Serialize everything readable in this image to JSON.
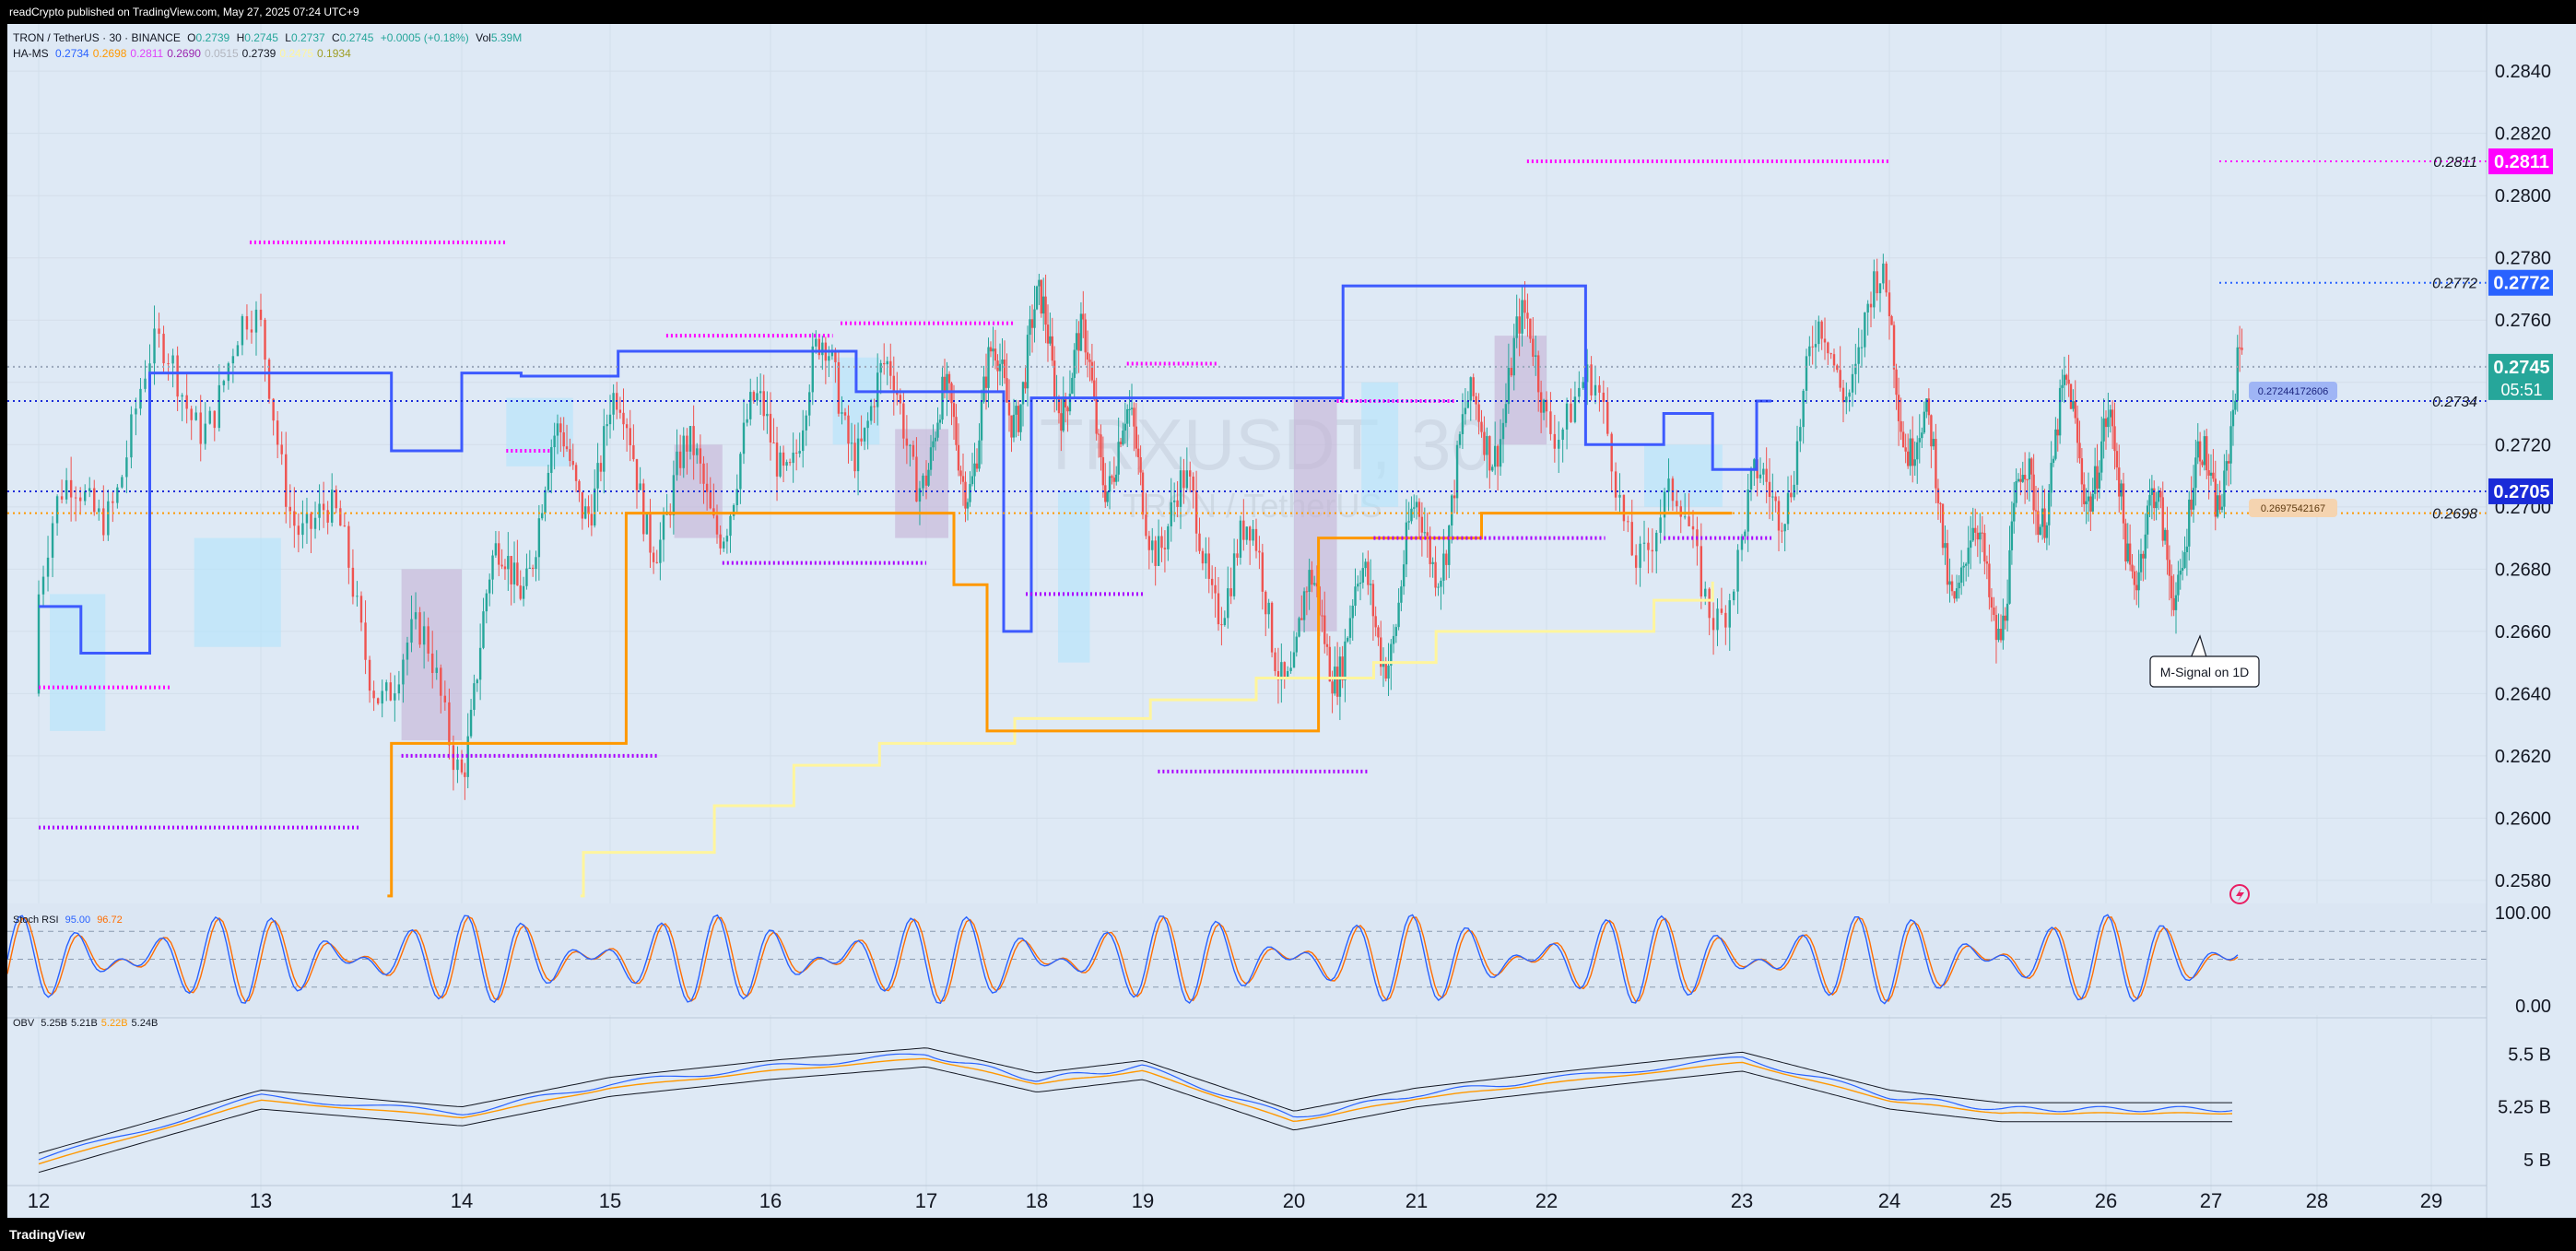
{
  "header": {
    "published": "readCrypto published on TradingView.com, May 27, 2025 07:24 UTC+9"
  },
  "symbol_line": {
    "name": "TRON / TetherUS · 30 · BINANCE",
    "o_label": "O",
    "o": "0.2739",
    "h_label": "H",
    "h": "0.2745",
    "l_label": "L",
    "l": "0.2737",
    "c_label": "C",
    "c": "0.2745",
    "change": "+0.0005 (+0.18%)",
    "vol_label": "Vol",
    "vol": "5.39M"
  },
  "hams_line": {
    "name": "HA-MS",
    "values": [
      "0.2734",
      "0.2698",
      "0.2811",
      "0.2690",
      "0.0515",
      "0.2739",
      "0.2475",
      "0.1934"
    ],
    "colors": [
      "#2962ff",
      "#ff9800",
      "#e040fb",
      "#9c27b0",
      "#b2b5be",
      "#131722",
      "#fff59d",
      "#9e9d24"
    ]
  },
  "watermark": {
    "symbol": "TRXUSDT, 30",
    "name": "TRON / TetherUS"
  },
  "stoch": {
    "name": "Stoch RSI",
    "k": "95.00",
    "d": "96.72",
    "k_color": "#2962ff",
    "d_color": "#ff6d00"
  },
  "obv": {
    "name": "OBV",
    "values": [
      "5.25B",
      "5.21B",
      "5.22B",
      "5.24B"
    ]
  },
  "annotation": {
    "text": "M-Signal on 1D"
  },
  "footer": {
    "brand": "TradingView"
  },
  "colors": {
    "background": "#dee9f5",
    "up": "#26a69a",
    "down": "#ef5350",
    "hams_blue": "#3d5afe",
    "hams_orange": "#ff9800",
    "hams_yellow": "#fff59d",
    "hams_pink": "#ff00ff",
    "hams_purple": "#aa00ff"
  },
  "chart_data": [
    {
      "type": "line",
      "subtype": "candlestick",
      "symbol": "TRXUSDT",
      "timeframe": "30",
      "x_ticks": [
        "12",
        "13",
        "14",
        "15",
        "16",
        "17",
        "18",
        "19",
        "20",
        "21",
        "22",
        "23",
        "24",
        "25",
        "26",
        "27",
        "28",
        "29"
      ],
      "y_ticks": [
        "0.2580",
        "0.2600",
        "0.2620",
        "0.2640",
        "0.2660",
        "0.2680",
        "0.2700",
        "0.2720",
        "0.2740",
        "0.2760",
        "0.2780",
        "0.2800",
        "0.2820",
        "0.2840"
      ],
      "ylim": [
        0.2572,
        0.2851
      ],
      "price_labels": [
        {
          "value": "0.2811",
          "color": "#ff00ff",
          "side": "0.2811"
        },
        {
          "value": "0.2772",
          "color": "#2962ff",
          "side": "0.2772"
        },
        {
          "value": "0.2745",
          "color": "#26a69a",
          "countdown": "05:51"
        },
        {
          "value": "0.2705",
          "color": "#1a2bd8"
        }
      ],
      "line_labels": [
        "0.2734",
        "0.2698"
      ],
      "level_tags": [
        "0.27244172606",
        "0.2697542167"
      ],
      "day_close_approx": [
        0.2672,
        0.2749,
        0.2622,
        0.2736,
        0.2702,
        0.2744,
        0.2728,
        0.2733,
        0.2632,
        0.2705,
        0.2726,
        0.2698,
        0.2745,
        0.2682,
        0.2711,
        0.2706,
        0.2745
      ],
      "hams_blue_steps": [
        [
          0,
          0.2668
        ],
        [
          0.19,
          0.2653
        ],
        [
          0.5,
          0.2743
        ],
        [
          1.55,
          0.2743
        ],
        [
          1.65,
          0.2718
        ],
        [
          2.0,
          0.2743
        ],
        [
          2.4,
          0.2742
        ],
        [
          3.05,
          0.275
        ],
        [
          4.1,
          0.275
        ],
        [
          4.55,
          0.2737
        ],
        [
          5.5,
          0.2737
        ],
        [
          5.7,
          0.266
        ],
        [
          5.95,
          0.2735
        ],
        [
          8.0,
          0.2735
        ],
        [
          8.4,
          0.2771
        ],
        [
          9.1,
          0.2771
        ],
        [
          9.9,
          0.2771
        ],
        [
          10.2,
          0.272
        ],
        [
          10.6,
          0.273
        ],
        [
          10.85,
          0.2712
        ],
        [
          11.1,
          0.2734
        ],
        [
          11.2,
          0.2734
        ]
      ],
      "hams_orange_steps": [
        [
          1.63,
          0.2575
        ],
        [
          1.65,
          0.2624
        ],
        [
          3.0,
          0.2624
        ],
        [
          3.1,
          0.2698
        ],
        [
          5.1,
          0.2698
        ],
        [
          5.25,
          0.2675
        ],
        [
          5.5,
          0.2675
        ],
        [
          5.55,
          0.2628
        ],
        [
          7.9,
          0.2628
        ],
        [
          8.15,
          0.2628
        ],
        [
          8.2,
          0.269
        ],
        [
          9.45,
          0.269
        ],
        [
          9.5,
          0.2698
        ],
        [
          10.95,
          0.2698
        ]
      ],
      "hams_yellow_steps": [
        [
          2.8,
          0.2575
        ],
        [
          2.82,
          0.2589
        ],
        [
          3.6,
          0.2589
        ],
        [
          3.65,
          0.2604
        ],
        [
          4.1,
          0.2604
        ],
        [
          4.15,
          0.2617
        ],
        [
          4.65,
          0.2617
        ],
        [
          4.7,
          0.2624
        ],
        [
          5.7,
          0.2624
        ],
        [
          5.8,
          0.2632
        ],
        [
          7.0,
          0.2632
        ],
        [
          7.05,
          0.2638
        ],
        [
          7.7,
          0.2638
        ],
        [
          7.75,
          0.2645
        ],
        [
          8.6,
          0.2645
        ],
        [
          8.65,
          0.265
        ],
        [
          9.1,
          0.265
        ],
        [
          9.15,
          0.266
        ],
        [
          10.5,
          0.266
        ],
        [
          10.55,
          0.267
        ],
        [
          10.85,
          0.2676
        ]
      ]
    },
    {
      "type": "line",
      "name": "Stoch RSI",
      "y_ticks": [
        "100.00",
        "0.00"
      ],
      "ylim": [
        0,
        100
      ],
      "bands": [
        80,
        50,
        20
      ],
      "k_last": 95.0,
      "d_last": 96.72
    },
    {
      "type": "line",
      "name": "OBV",
      "y_ticks": [
        "5.5 B",
        "5.25 B",
        "5 B"
      ],
      "ylim": [
        4.93,
        5.62
      ],
      "series_last": [
        5.25,
        5.21,
        5.22,
        5.24
      ]
    }
  ]
}
